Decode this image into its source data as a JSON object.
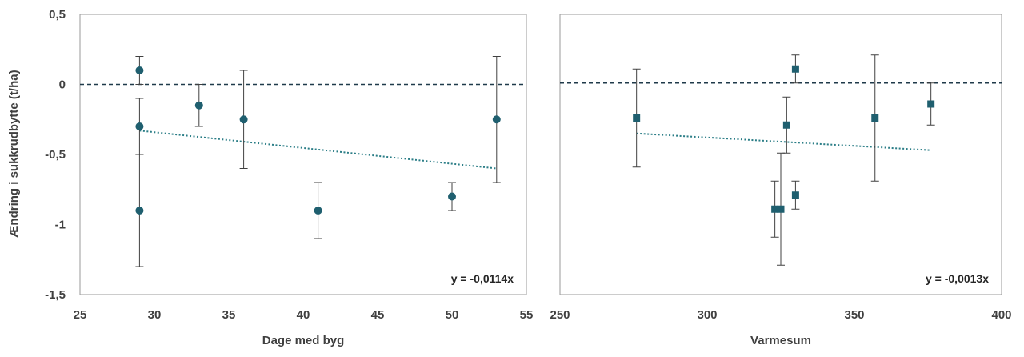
{
  "shared_ylabel": "Ændring i sukkrudbytte (t/ha)",
  "colors": {
    "marker": "#1f5f6f",
    "trend": "#2a7d86",
    "error": "#404040",
    "zero": "#1f3a4a",
    "frame": "#9a9a9a"
  },
  "chart_data": [
    {
      "type": "scatter",
      "xlabel": "Dage med byg",
      "ylabel": "Ændring i sukkrudbytte (t/ha)",
      "xlim": [
        25,
        55
      ],
      "ylim": [
        -1.5,
        0.5
      ],
      "x_ticks": [
        "25",
        "30",
        "35",
        "40",
        "45",
        "50",
        "55"
      ],
      "y_ticks": [
        "0,5",
        "0",
        "-0,5",
        "-1",
        "-1,5"
      ],
      "points": [
        {
          "x": 29,
          "y": 0.1,
          "err_low": 0.0,
          "err_high": 0.2
        },
        {
          "x": 29,
          "y": -0.3,
          "err_low": -0.5,
          "err_high": -0.1
        },
        {
          "x": 29,
          "y": -0.9,
          "err_low": -1.3,
          "err_high": -0.5
        },
        {
          "x": 33,
          "y": -0.15,
          "err_low": -0.3,
          "err_high": 0.0
        },
        {
          "x": 36,
          "y": -0.25,
          "err_low": -0.6,
          "err_high": 0.1
        },
        {
          "x": 41,
          "y": -0.9,
          "err_low": -1.1,
          "err_high": -0.7
        },
        {
          "x": 50,
          "y": -0.8,
          "err_low": -0.9,
          "err_high": -0.7
        },
        {
          "x": 53,
          "y": -0.25,
          "err_low": -0.7,
          "err_high": 0.2
        }
      ],
      "trendline": {
        "x": [
          29,
          53
        ],
        "y": [
          -0.33,
          -0.6
        ]
      },
      "reference_line_y": 0,
      "equation": "y = -0,0114x"
    },
    {
      "type": "scatter",
      "xlabel": "Varmesum",
      "xlim": [
        250,
        400
      ],
      "ylim": [
        -1.5,
        0.5
      ],
      "x_ticks": [
        "250",
        "300",
        "350",
        "400"
      ],
      "points": [
        {
          "x": 276,
          "y": -0.24,
          "err_low": -0.59,
          "err_high": 0.11
        },
        {
          "x": 323,
          "y": -0.89,
          "err_low": -1.09,
          "err_high": -0.69
        },
        {
          "x": 325,
          "y": -0.89,
          "err_low": -1.29,
          "err_high": -0.49
        },
        {
          "x": 327,
          "y": -0.29,
          "err_low": -0.49,
          "err_high": -0.09
        },
        {
          "x": 330,
          "y": 0.11,
          "err_low": 0.01,
          "err_high": 0.21
        },
        {
          "x": 330,
          "y": -0.79,
          "err_low": -0.89,
          "err_high": -0.69
        },
        {
          "x": 357,
          "y": -0.24,
          "err_low": -0.69,
          "err_high": 0.21
        },
        {
          "x": 376,
          "y": -0.14,
          "err_low": -0.29,
          "err_high": 0.01
        }
      ],
      "trendline": {
        "x": [
          276,
          376
        ],
        "y": [
          -0.35,
          -0.47
        ]
      },
      "reference_line_y": 0.01,
      "equation": "y = -0,0013x"
    }
  ]
}
